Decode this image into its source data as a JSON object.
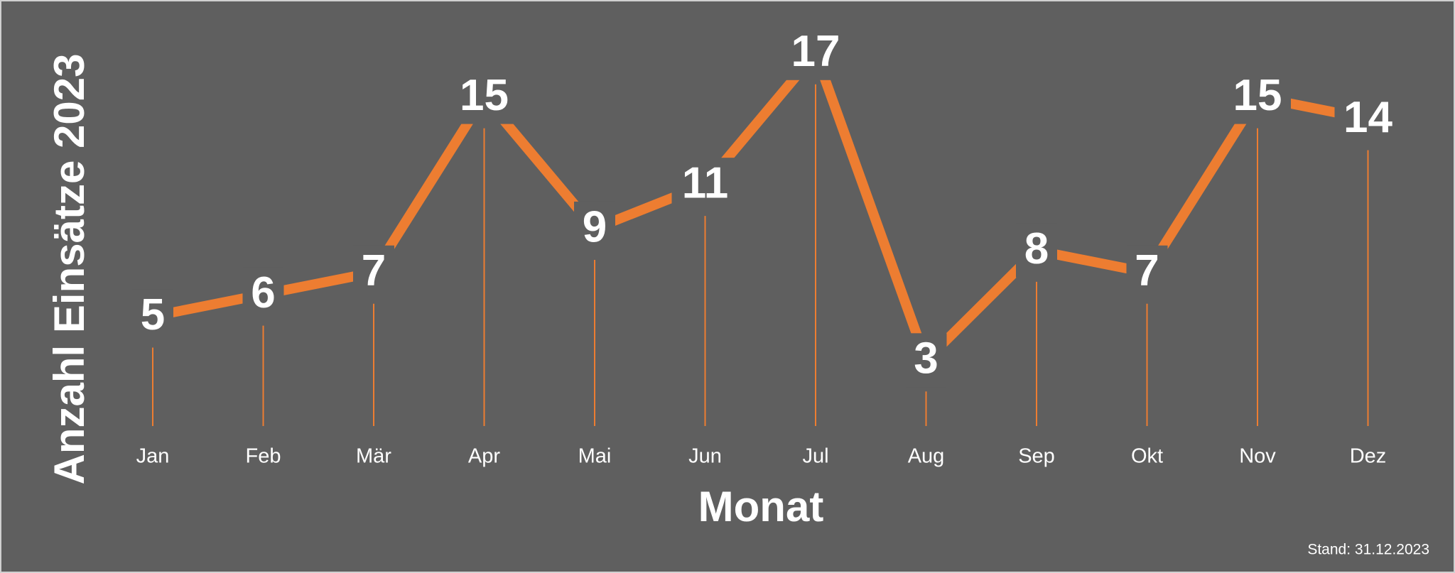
{
  "chart_data": {
    "type": "line",
    "y_axis_label": "Anzahl Einsätze 2023",
    "x_axis_label": "Monat",
    "footnote": "Stand: 31.12.2023",
    "categories": [
      "Jan",
      "Feb",
      "Mär",
      "Apr",
      "Mai",
      "Jun",
      "Jul",
      "Aug",
      "Sep",
      "Okt",
      "Nov",
      "Dez"
    ],
    "values": [
      5,
      6,
      7,
      15,
      9,
      11,
      17,
      3,
      8,
      7,
      15,
      14
    ],
    "color": "#ed7d31",
    "ylim": [
      0,
      19
    ]
  }
}
